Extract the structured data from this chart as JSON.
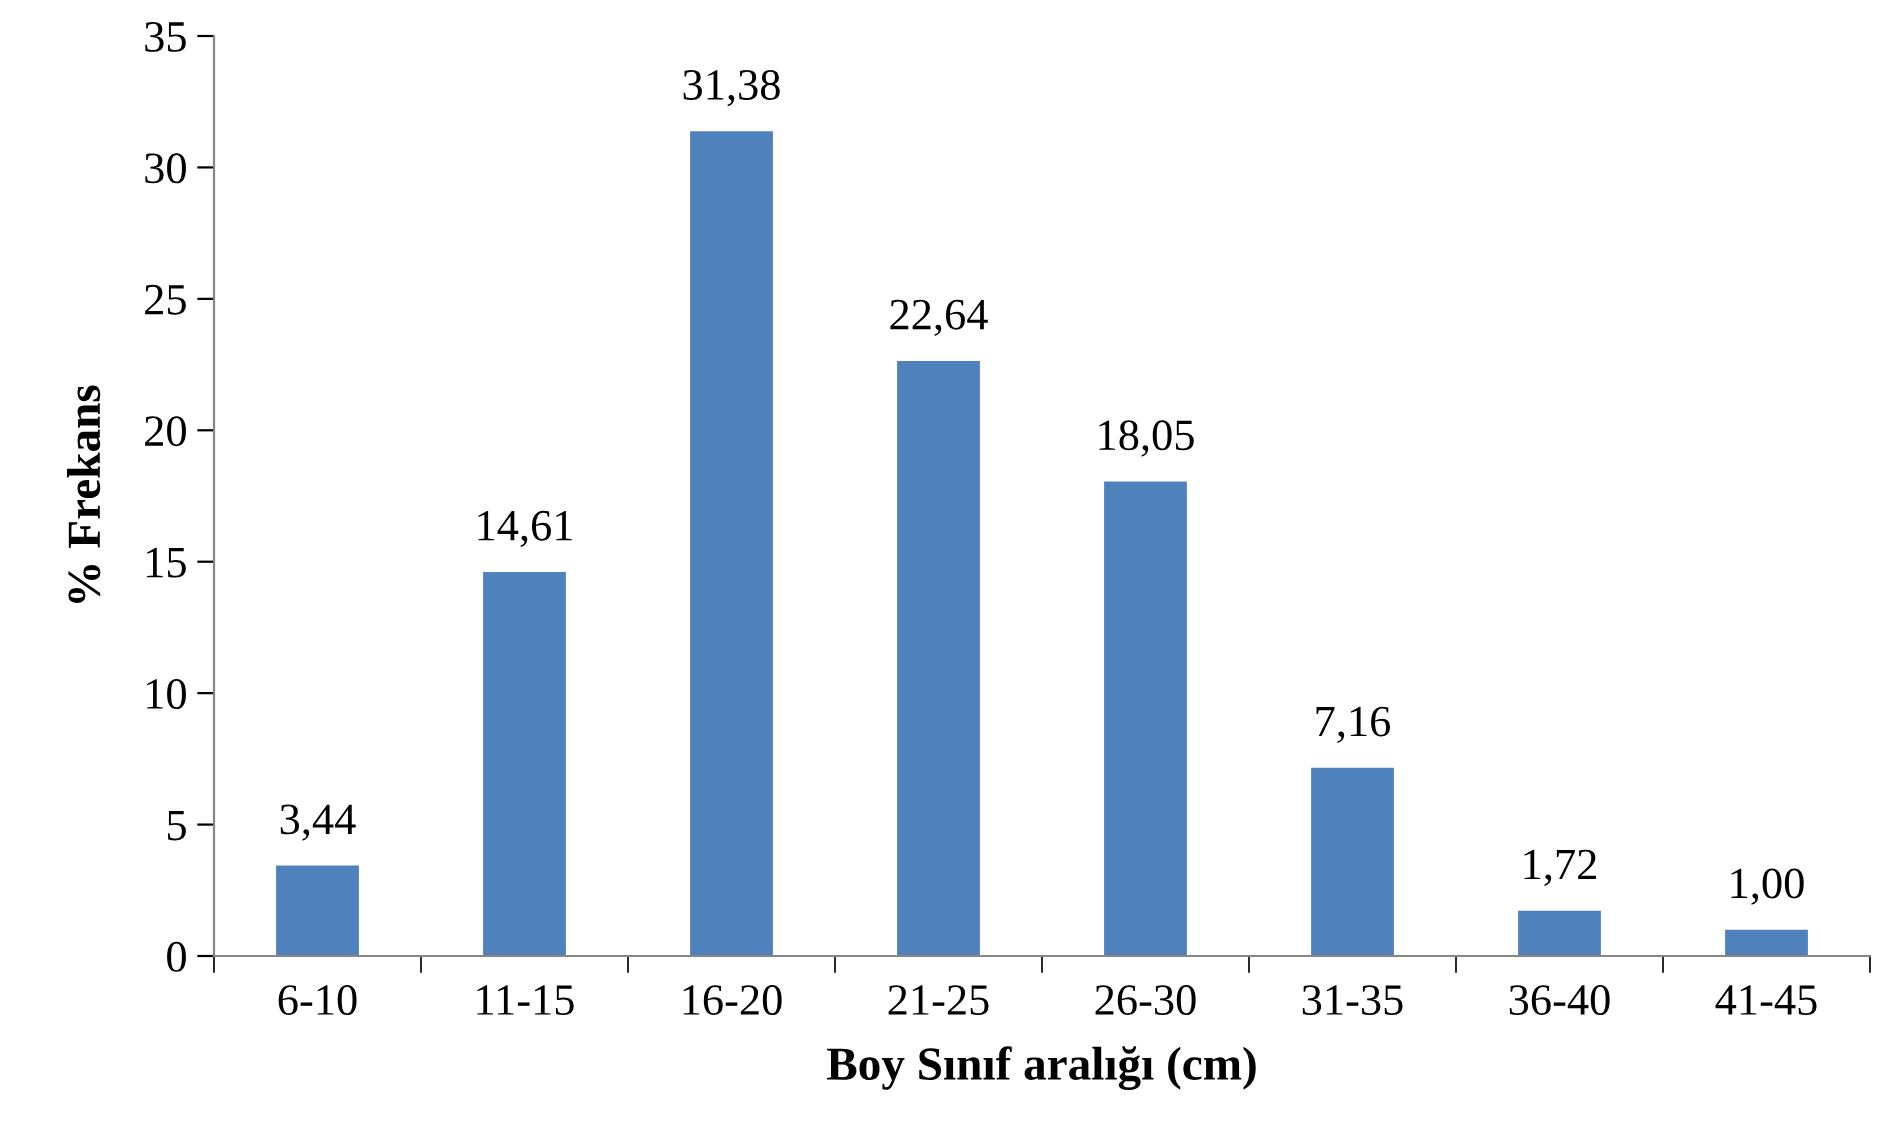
{
  "chart_data": {
    "type": "bar",
    "categories": [
      "6-10",
      "11-15",
      "16-20",
      "21-25",
      "26-30",
      "31-35",
      "36-40",
      "41-45"
    ],
    "values": [
      3.44,
      14.61,
      31.38,
      22.64,
      18.05,
      7.16,
      1.72,
      1.0
    ],
    "value_labels": [
      "3,44",
      "14,61",
      "31,38",
      "22,64",
      "18,05",
      "7,16",
      "1,72",
      "1,00"
    ],
    "color": "#4f81bd",
    "xlabel": "Boy Sınıf aralığı (cm)",
    "ylabel": "% Frekans",
    "ylim": [
      0,
      35
    ],
    "yticks": [
      0,
      5,
      10,
      15,
      20,
      25,
      30,
      35
    ],
    "grid": false
  }
}
